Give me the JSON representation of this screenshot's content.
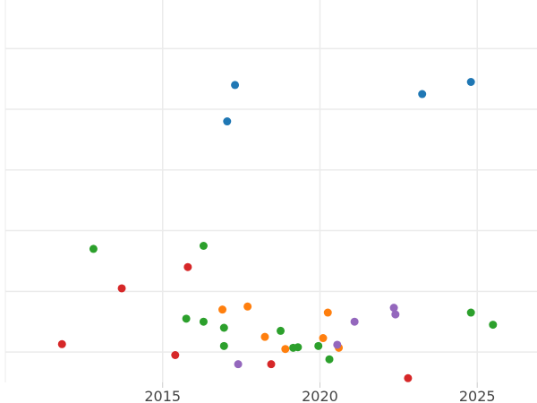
{
  "chart_data": {
    "type": "scatter",
    "title": "",
    "xlabel": "",
    "ylabel": "",
    "xlim": [
      2010.0,
      2026.9
    ],
    "ylim": [
      -0.5,
      5.8
    ],
    "x_ticks": [
      2015,
      2020,
      2025
    ],
    "x_tick_labels": [
      "2015",
      "2020",
      "2025"
    ],
    "y_gridlines": [
      0,
      1,
      2,
      3,
      4,
      5
    ],
    "grid": true,
    "legend": "none",
    "series": [
      {
        "color": "#1f77b4",
        "points": [
          {
            "x": 2017.3,
            "y": 4.4
          },
          {
            "x": 2017.05,
            "y": 3.8
          },
          {
            "x": 2023.25,
            "y": 4.25
          },
          {
            "x": 2024.8,
            "y": 4.45
          }
        ]
      },
      {
        "color": "#2ca02c",
        "points": [
          {
            "x": 2012.8,
            "y": 1.7
          },
          {
            "x": 2016.3,
            "y": 1.75
          },
          {
            "x": 2015.75,
            "y": 0.55
          },
          {
            "x": 2016.3,
            "y": 0.5
          },
          {
            "x": 2016.95,
            "y": 0.4
          },
          {
            "x": 2016.95,
            "y": 0.1
          },
          {
            "x": 2018.75,
            "y": 0.35
          },
          {
            "x": 2019.15,
            "y": 0.07
          },
          {
            "x": 2019.3,
            "y": 0.08
          },
          {
            "x": 2019.95,
            "y": 0.1
          },
          {
            "x": 2020.3,
            "y": -0.12
          },
          {
            "x": 2024.8,
            "y": 0.65
          },
          {
            "x": 2025.5,
            "y": 0.45
          }
        ]
      },
      {
        "color": "#d62728",
        "points": [
          {
            "x": 2011.8,
            "y": 0.13
          },
          {
            "x": 2013.7,
            "y": 1.05
          },
          {
            "x": 2015.8,
            "y": 1.4
          },
          {
            "x": 2015.4,
            "y": -0.05
          },
          {
            "x": 2018.45,
            "y": -0.2
          },
          {
            "x": 2022.8,
            "y": -0.43
          }
        ]
      },
      {
        "color": "#ff7f0e",
        "points": [
          {
            "x": 2016.9,
            "y": 0.7
          },
          {
            "x": 2017.7,
            "y": 0.75
          },
          {
            "x": 2018.25,
            "y": 0.25
          },
          {
            "x": 2018.9,
            "y": 0.05
          },
          {
            "x": 2020.25,
            "y": 0.65
          },
          {
            "x": 2020.1,
            "y": 0.23
          },
          {
            "x": 2020.6,
            "y": 0.07
          }
        ]
      },
      {
        "color": "#9467bd",
        "points": [
          {
            "x": 2017.4,
            "y": -0.2
          },
          {
            "x": 2020.55,
            "y": 0.12
          },
          {
            "x": 2021.1,
            "y": 0.5
          },
          {
            "x": 2022.35,
            "y": 0.73
          },
          {
            "x": 2022.4,
            "y": 0.62
          }
        ]
      }
    ]
  }
}
